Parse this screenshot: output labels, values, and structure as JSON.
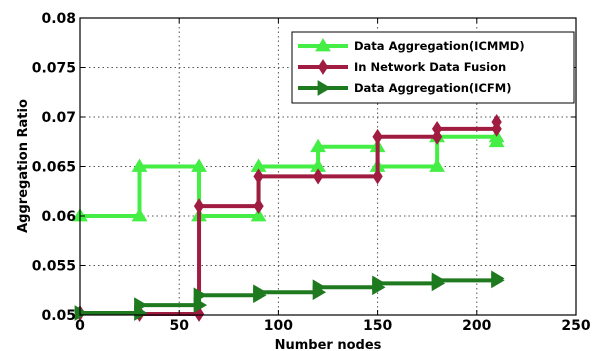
{
  "chart_data": {
    "type": "line",
    "step": true,
    "title": "",
    "xlabel": "Number nodes",
    "ylabel": "Aggregation Ratio",
    "xlim": [
      0,
      250
    ],
    "ylim": [
      0.05,
      0.08
    ],
    "xticks": [
      0,
      50,
      100,
      150,
      200,
      250
    ],
    "xtick_labels": [
      "0",
      "50",
      "100",
      "150",
      "200",
      "250"
    ],
    "yticks": [
      0.05,
      0.055,
      0.06,
      0.065,
      0.07,
      0.075,
      0.08
    ],
    "ytick_labels": [
      "0.05",
      "0.055",
      "0.06",
      "0.065",
      "0.07",
      "0.075",
      "0.08"
    ],
    "grid": true,
    "legend_position": "top-right",
    "series": [
      {
        "name": "Data Aggregation(ICMMD)",
        "color": "#44ee44",
        "marker": "triangle-up",
        "x": [
          0,
          30,
          60,
          90,
          120,
          150,
          180,
          210
        ],
        "y": [
          0.06,
          0.065,
          0.06,
          0.065,
          0.067,
          0.065,
          0.068,
          0.0675
        ]
      },
      {
        "name": "In Network Data Fusion",
        "color": "#a01c40",
        "marker": "diamond",
        "x": [
          0,
          30,
          60,
          90,
          120,
          150,
          180,
          210
        ],
        "y": [
          0.0502,
          0.0501,
          0.061,
          0.064,
          0.064,
          0.068,
          0.0688,
          0.0695
        ]
      },
      {
        "name": "Data Aggregation(ICFM)",
        "color": "#1f7a1f",
        "marker": "triangle-right",
        "x": [
          0,
          30,
          60,
          90,
          120,
          150,
          180,
          210
        ],
        "y": [
          0.0502,
          0.051,
          0.052,
          0.0523,
          0.0528,
          0.0532,
          0.0535,
          0.0537
        ]
      }
    ]
  }
}
